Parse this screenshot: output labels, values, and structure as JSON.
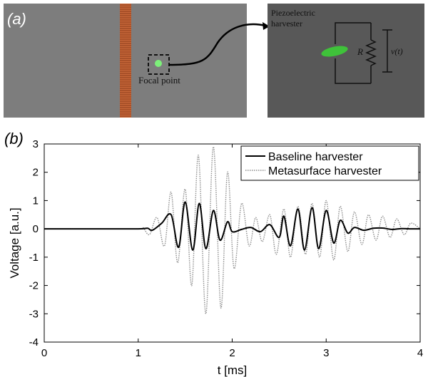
{
  "panel_a": {
    "label": "(a)",
    "focal_label": "Focal point",
    "inset_title_line1": "Piezoelectric",
    "inset_title_line2": "harvester",
    "resistor_label": "R",
    "voltage_label": "v(t)",
    "colors": {
      "background": "#7d7d7d",
      "inset_background": "#585858",
      "metasurface_strip": "#c8683a",
      "focal_dot": "#7df07a",
      "harvester_disk": "#3fc23a"
    }
  },
  "panel_b": {
    "label": "(b)"
  },
  "chart_data": {
    "type": "line",
    "xlabel": "t [ms]",
    "ylabel": "Voltage [a.u.]",
    "xlim": [
      0,
      4
    ],
    "ylim": [
      -4,
      3
    ],
    "xticks": [
      0,
      1,
      2,
      3,
      4
    ],
    "yticks": [
      -4,
      -3,
      -2,
      -1,
      0,
      1,
      2,
      3
    ],
    "legend_position": "top-right",
    "grid": false,
    "series": [
      {
        "name": "Baseline harvester",
        "style": "solid",
        "color": "#000000",
        "x": [
          0,
          0.5,
          1.0,
          1.1,
          1.15,
          1.25,
          1.35,
          1.43,
          1.5,
          1.58,
          1.65,
          1.72,
          1.8,
          1.87,
          1.95,
          2.0,
          2.1,
          2.2,
          2.3,
          2.4,
          2.5,
          2.55,
          2.62,
          2.7,
          2.77,
          2.85,
          2.92,
          3.0,
          3.08,
          3.15,
          3.23,
          3.3,
          3.4,
          3.5,
          3.6,
          3.7,
          3.8,
          3.9,
          4.0
        ],
        "y": [
          0,
          0,
          0,
          0.02,
          -0.05,
          0.2,
          0.5,
          -0.65,
          0.95,
          -0.75,
          0.9,
          -0.7,
          0.65,
          -0.4,
          0.25,
          -0.1,
          -0.02,
          0.05,
          -0.1,
          0.15,
          -0.3,
          0.45,
          -0.6,
          0.7,
          -0.75,
          0.75,
          -0.7,
          0.65,
          -0.5,
          0.3,
          -0.15,
          0.05,
          -0.05,
          0.02,
          0.03,
          -0.02,
          0.01,
          0,
          0
        ]
      },
      {
        "name": "Metasurface harvester",
        "style": "dotted",
        "color": "#8c8c8c",
        "x": [
          0,
          0.5,
          1.0,
          1.05,
          1.12,
          1.2,
          1.28,
          1.35,
          1.42,
          1.5,
          1.57,
          1.64,
          1.72,
          1.8,
          1.88,
          1.95,
          2.02,
          2.1,
          2.18,
          2.25,
          2.32,
          2.4,
          2.47,
          2.55,
          2.62,
          2.7,
          2.78,
          2.85,
          2.93,
          3.0,
          3.08,
          3.15,
          3.23,
          3.3,
          3.38,
          3.45,
          3.53,
          3.6,
          3.68,
          3.75,
          3.83,
          3.9,
          4.0
        ],
        "y": [
          0,
          0,
          0,
          0.05,
          -0.2,
          0.4,
          -0.6,
          1.3,
          -1.2,
          1.4,
          -2.0,
          2.6,
          -3.0,
          2.9,
          -2.8,
          2.0,
          -1.4,
          0.9,
          -0.6,
          0.4,
          -0.45,
          0.5,
          -0.9,
          0.7,
          -1.0,
          0.8,
          -0.9,
          0.9,
          -1.0,
          1.0,
          -1.1,
          0.8,
          -0.8,
          0.6,
          -0.55,
          0.5,
          -0.4,
          0.45,
          -0.3,
          0.35,
          -0.2,
          0.2,
          0
        ]
      }
    ]
  }
}
